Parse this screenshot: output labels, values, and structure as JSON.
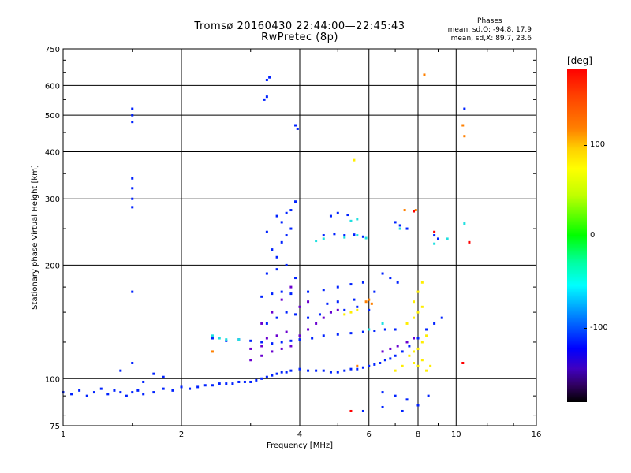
{
  "header": {
    "title_line1": "Tromsø 20160430 22:44:00—22:45:43",
    "title_line2": "RwPretec (8p)",
    "phases_header": "Phases",
    "phases_line1": "mean, sd,O: -94.8, 17.9",
    "phases_line2": "mean, sd,X:  89.7, 23.6"
  },
  "colorbar": {
    "title": "[deg]",
    "ticks": [
      "100",
      "0",
      "-100"
    ],
    "colors": [
      "#ff0000",
      "#ffff00",
      "#00ff00",
      "#00ffff",
      "#0000ff",
      "#000000"
    ]
  },
  "chart_data": {
    "type": "scatter",
    "title": "Tromsø 20160430 22:44:00—22:45:43",
    "subtitle": "RwPretec (8p)",
    "xlabel": "Frequency [MHz]",
    "ylabel": "Stationary phase Virtual Height [km]",
    "xscale": "log",
    "yscale": "log",
    "xlim": [
      1,
      16
    ],
    "ylim": [
      75,
      750
    ],
    "xticks": [
      1,
      2,
      4,
      6,
      8,
      10,
      16
    ],
    "xtick_labels": [
      "1",
      "2",
      "4",
      "6",
      "8",
      "10",
      "16"
    ],
    "yticks": [
      75,
      100,
      200,
      300,
      400,
      500,
      600,
      750
    ],
    "ytick_labels": [
      "75",
      "100",
      "200",
      "300",
      "400",
      "500",
      "600",
      "750"
    ],
    "grid": true,
    "series": [
      {
        "color": "#0022ff",
        "points": [
          [
            1.0,
            92
          ],
          [
            1.05,
            91
          ],
          [
            1.1,
            93
          ],
          [
            1.15,
            90
          ],
          [
            1.2,
            92
          ],
          [
            1.25,
            94
          ],
          [
            1.3,
            91
          ],
          [
            1.35,
            93
          ],
          [
            1.4,
            92
          ],
          [
            1.45,
            90
          ],
          [
            1.5,
            92
          ],
          [
            1.55,
            93
          ],
          [
            1.6,
            91
          ],
          [
            1.7,
            92
          ],
          [
            1.8,
            94
          ],
          [
            1.9,
            93
          ],
          [
            2.0,
            95
          ],
          [
            2.1,
            94
          ],
          [
            2.2,
            95
          ],
          [
            2.3,
            96
          ],
          [
            2.4,
            96
          ],
          [
            2.5,
            97
          ],
          [
            2.6,
            97
          ],
          [
            2.7,
            97
          ],
          [
            2.8,
            98
          ],
          [
            2.9,
            98
          ],
          [
            3.0,
            98
          ],
          [
            3.1,
            99
          ],
          [
            3.2,
            100
          ],
          [
            3.3,
            101
          ],
          [
            3.4,
            102
          ],
          [
            3.5,
            103
          ],
          [
            3.6,
            104
          ],
          [
            3.7,
            104
          ],
          [
            3.8,
            105
          ],
          [
            4.0,
            106
          ],
          [
            4.2,
            105
          ],
          [
            4.4,
            105
          ],
          [
            4.6,
            105
          ],
          [
            4.8,
            104
          ],
          [
            5.0,
            104
          ],
          [
            5.2,
            105
          ],
          [
            5.4,
            106
          ],
          [
            5.6,
            106
          ],
          [
            5.8,
            107
          ],
          [
            6.0,
            108
          ],
          [
            6.2,
            109
          ],
          [
            6.4,
            110
          ],
          [
            6.6,
            112
          ],
          [
            6.8,
            113
          ],
          [
            7.0,
            115
          ],
          [
            7.3,
            118
          ],
          [
            7.6,
            122
          ],
          [
            8.0,
            128
          ],
          [
            8.4,
            135
          ],
          [
            8.8,
            140
          ],
          [
            9.2,
            145
          ],
          [
            2.4,
            128
          ],
          [
            2.6,
            126
          ],
          [
            2.8,
            127
          ],
          [
            3.0,
            126
          ],
          [
            3.2,
            125
          ],
          [
            3.4,
            124
          ],
          [
            3.6,
            125
          ],
          [
            3.8,
            126
          ],
          [
            4.0,
            127
          ],
          [
            4.3,
            128
          ],
          [
            4.6,
            130
          ],
          [
            5.0,
            131
          ],
          [
            5.4,
            132
          ],
          [
            5.8,
            133
          ],
          [
            6.2,
            134
          ],
          [
            6.6,
            135
          ],
          [
            7.0,
            135
          ],
          [
            3.3,
            140
          ],
          [
            3.5,
            145
          ],
          [
            3.7,
            150
          ],
          [
            3.9,
            148
          ],
          [
            4.2,
            145
          ],
          [
            4.5,
            148
          ],
          [
            4.8,
            150
          ],
          [
            5.2,
            152
          ],
          [
            5.6,
            155
          ],
          [
            6.0,
            152
          ],
          [
            3.2,
            165
          ],
          [
            3.4,
            168
          ],
          [
            3.6,
            170
          ],
          [
            3.8,
            168
          ],
          [
            4.2,
            170
          ],
          [
            4.6,
            172
          ],
          [
            5.0,
            175
          ],
          [
            5.4,
            178
          ],
          [
            5.8,
            180
          ],
          [
            3.3,
            190
          ],
          [
            3.5,
            195
          ],
          [
            3.7,
            200
          ],
          [
            3.9,
            185
          ],
          [
            3.4,
            220
          ],
          [
            3.6,
            230
          ],
          [
            3.7,
            240
          ],
          [
            3.8,
            250
          ],
          [
            3.6,
            260
          ],
          [
            3.7,
            275
          ],
          [
            3.5,
            270
          ],
          [
            3.8,
            280
          ],
          [
            3.9,
            295
          ],
          [
            3.3,
            245
          ],
          [
            3.5,
            210
          ],
          [
            4.6,
            240
          ],
          [
            4.9,
            242
          ],
          [
            5.2,
            240
          ],
          [
            5.5,
            241
          ],
          [
            5.8,
            238
          ],
          [
            4.8,
            270
          ],
          [
            5.0,
            275
          ],
          [
            5.3,
            272
          ],
          [
            7.0,
            260
          ],
          [
            7.2,
            255
          ],
          [
            7.5,
            250
          ],
          [
            8.8,
            240
          ],
          [
            9.0,
            235
          ],
          [
            6.5,
            190
          ],
          [
            6.8,
            185
          ],
          [
            7.1,
            180
          ],
          [
            6.2,
            170
          ],
          [
            5.5,
            162
          ],
          [
            5.0,
            160
          ],
          [
            4.7,
            158
          ],
          [
            1.5,
            520
          ],
          [
            1.5,
            500
          ],
          [
            1.5,
            480
          ],
          [
            1.5,
            340
          ],
          [
            1.5,
            320
          ],
          [
            1.5,
            300
          ],
          [
            1.5,
            285
          ],
          [
            1.5,
            170
          ],
          [
            1.5,
            110
          ],
          [
            3.3,
            620
          ],
          [
            3.35,
            630
          ],
          [
            3.3,
            560
          ],
          [
            3.25,
            550
          ],
          [
            3.9,
            470
          ],
          [
            3.95,
            460
          ],
          [
            10.5,
            520
          ],
          [
            1.4,
            105
          ],
          [
            1.6,
            98
          ],
          [
            1.7,
            103
          ],
          [
            1.8,
            101
          ],
          [
            6.5,
            92
          ],
          [
            7.0,
            90
          ],
          [
            7.5,
            88
          ],
          [
            8.5,
            90
          ],
          [
            5.8,
            82
          ],
          [
            6.5,
            84
          ],
          [
            7.3,
            82
          ],
          [
            8.0,
            85
          ]
        ]
      },
      {
        "color": "#6a00d0",
        "points": [
          [
            3.3,
            128
          ],
          [
            3.5,
            130
          ],
          [
            3.7,
            133
          ],
          [
            3.2,
            140
          ],
          [
            3.4,
            150
          ],
          [
            3.6,
            162
          ],
          [
            3.8,
            175
          ],
          [
            3.0,
            120
          ],
          [
            3.2,
            122
          ],
          [
            3.4,
            118
          ],
          [
            3.6,
            120
          ],
          [
            3.8,
            122
          ],
          [
            4.0,
            130
          ],
          [
            4.2,
            135
          ],
          [
            4.4,
            140
          ],
          [
            4.6,
            145
          ],
          [
            4.8,
            150
          ],
          [
            5.0,
            152
          ],
          [
            4.0,
            155
          ],
          [
            4.2,
            160
          ],
          [
            6.5,
            118
          ],
          [
            6.8,
            120
          ],
          [
            7.1,
            122
          ],
          [
            7.5,
            125
          ],
          [
            7.8,
            128
          ],
          [
            3.0,
            112
          ],
          [
            3.2,
            115
          ]
        ]
      },
      {
        "color": "#ffee00",
        "points": [
          [
            7.6,
            115
          ],
          [
            7.8,
            118
          ],
          [
            8.0,
            120
          ],
          [
            8.2,
            125
          ],
          [
            8.4,
            130
          ],
          [
            7.8,
            110
          ],
          [
            8.0,
            108
          ],
          [
            8.2,
            112
          ],
          [
            8.4,
            105
          ],
          [
            8.6,
            108
          ],
          [
            7.5,
            140
          ],
          [
            7.8,
            145
          ],
          [
            8.0,
            150
          ],
          [
            8.2,
            155
          ],
          [
            5.2,
            148
          ],
          [
            5.4,
            150
          ],
          [
            5.6,
            152
          ],
          [
            7.0,
            105
          ],
          [
            7.3,
            108
          ],
          [
            7.8,
            160
          ],
          [
            8.0,
            170
          ],
          [
            8.2,
            180
          ],
          [
            5.5,
            380
          ]
        ]
      },
      {
        "color": "#20e0e0",
        "points": [
          [
            2.4,
            130
          ],
          [
            2.5,
            128
          ],
          [
            2.6,
            127
          ],
          [
            2.8,
            127
          ],
          [
            4.4,
            232
          ],
          [
            4.6,
            235
          ],
          [
            5.2,
            237
          ],
          [
            5.6,
            240
          ],
          [
            5.9,
            236
          ],
          [
            5.4,
            262
          ],
          [
            5.6,
            265
          ],
          [
            7.2,
            250
          ],
          [
            8.8,
            228
          ],
          [
            9.5,
            235
          ],
          [
            10.5,
            258
          ],
          [
            6.0,
            135
          ],
          [
            6.5,
            140
          ]
        ]
      },
      {
        "color": "#ff8000",
        "points": [
          [
            5.9,
            160
          ],
          [
            6.0,
            162
          ],
          [
            6.1,
            158
          ],
          [
            8.3,
            640
          ],
          [
            10.4,
            470
          ],
          [
            10.5,
            440
          ],
          [
            2.4,
            118
          ],
          [
            7.4,
            280
          ],
          [
            7.9,
            280
          ],
          [
            5.6,
            108
          ]
        ]
      },
      {
        "color": "#ff0000",
        "points": [
          [
            8.8,
            245
          ],
          [
            10.4,
            110
          ],
          [
            7.8,
            278
          ],
          [
            10.8,
            230
          ],
          [
            5.4,
            82
          ]
        ]
      }
    ]
  }
}
